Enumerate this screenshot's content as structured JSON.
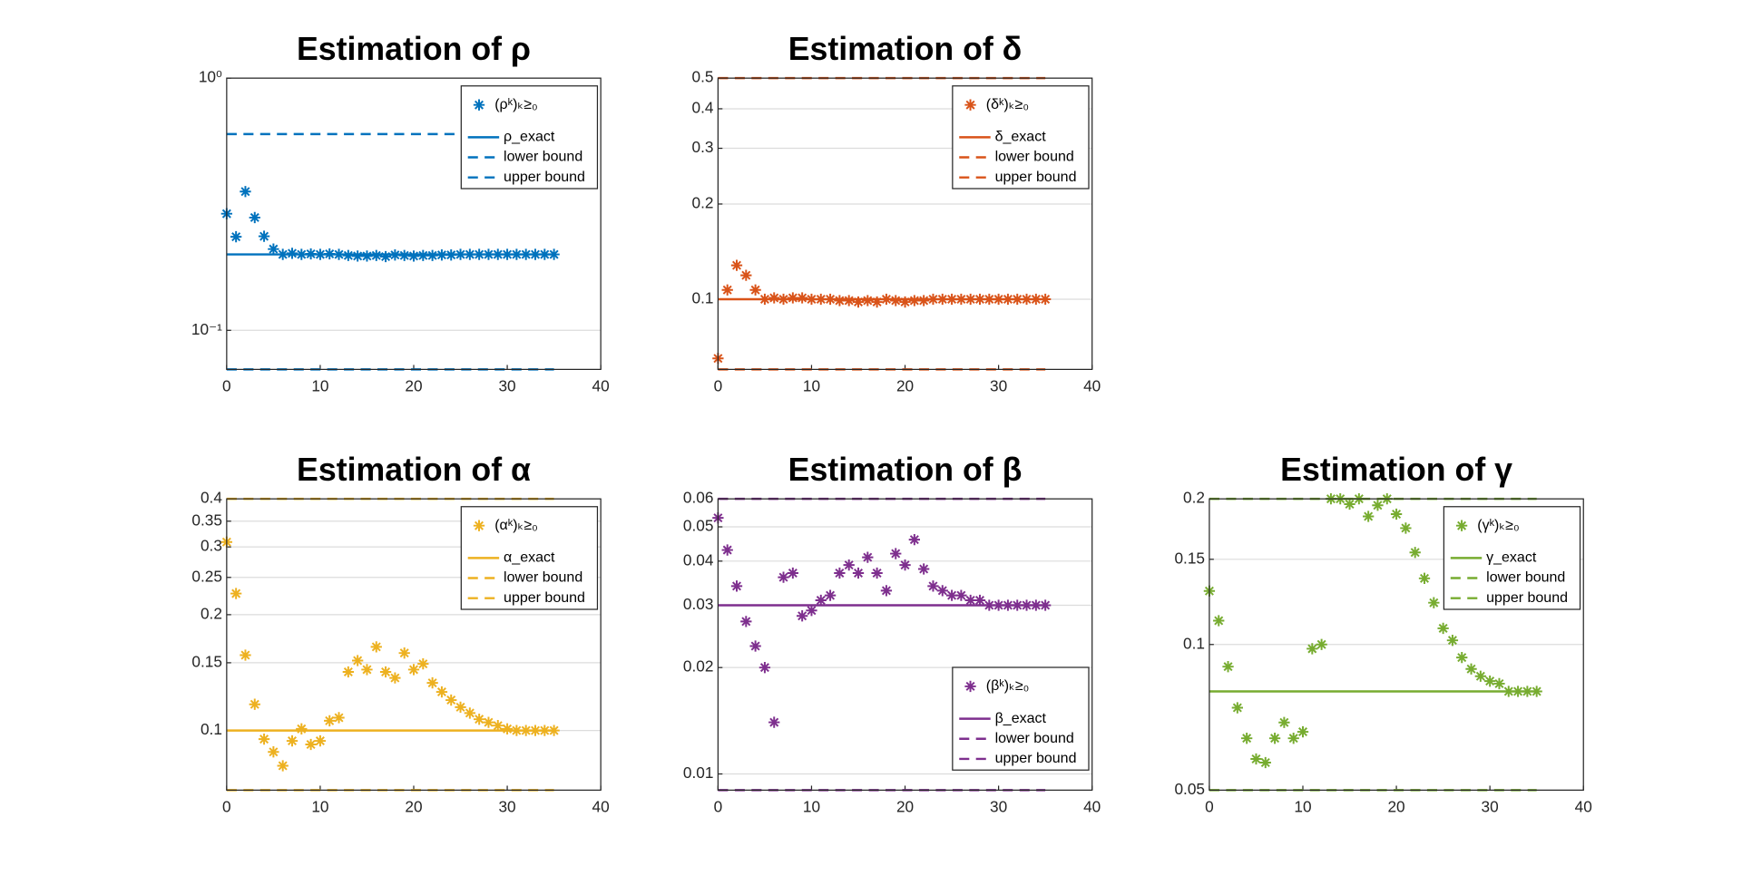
{
  "chart_data": [
    {
      "type": "scatter",
      "title": "Estimation of ρ",
      "log_y": true,
      "grid": true,
      "legend": "upper right",
      "xlim": [
        0,
        40
      ],
      "xticks": [
        0,
        10,
        20,
        30,
        40
      ],
      "ylim": [
        0.07,
        1
      ],
      "yticks": [
        {
          "value": 0.1,
          "label": "10⁻¹"
        },
        {
          "value": 1,
          "label": "10⁰"
        }
      ],
      "x": [
        0,
        1,
        2,
        3,
        4,
        5,
        6,
        7,
        8,
        9,
        10,
        11,
        12,
        13,
        14,
        15,
        16,
        17,
        18,
        19,
        20,
        21,
        22,
        23,
        24,
        25,
        26,
        27,
        28,
        29,
        30,
        31,
        32,
        33,
        34,
        35
      ],
      "series": [
        {
          "name": "(ρᵏ)ₖ≥₀",
          "color": "#0072bd",
          "values": [
            0.29,
            0.235,
            0.355,
            0.28,
            0.236,
            0.21,
            0.2,
            0.202,
            0.2,
            0.201,
            0.2,
            0.201,
            0.2,
            0.198,
            0.197,
            0.197,
            0.198,
            0.196,
            0.199,
            0.198,
            0.197,
            0.198,
            0.198,
            0.199,
            0.199,
            0.2,
            0.2,
            0.2,
            0.2,
            0.2,
            0.2,
            0.2,
            0.2,
            0.2,
            0.2,
            0.2
          ]
        }
      ],
      "reference_lines": [
        {
          "name": "ρ_exact",
          "value": 0.2,
          "dashed": false
        },
        {
          "name": "lower bound",
          "value": 0.07,
          "dashed": true
        },
        {
          "name": "upper bound",
          "value": 0.6,
          "dashed": true
        }
      ]
    },
    {
      "type": "scatter",
      "title": "Estimation of δ",
      "log_y": true,
      "grid": true,
      "legend": "upper right",
      "xlim": [
        0,
        40
      ],
      "xticks": [
        0,
        10,
        20,
        30,
        40
      ],
      "ylim": [
        0.06,
        0.5
      ],
      "yticks": [
        0.1,
        0.2,
        0.3,
        0.4,
        0.5
      ],
      "x": [
        0,
        1,
        2,
        3,
        4,
        5,
        6,
        7,
        8,
        9,
        10,
        11,
        12,
        13,
        14,
        15,
        16,
        17,
        18,
        19,
        20,
        21,
        22,
        23,
        24,
        25,
        26,
        27,
        28,
        29,
        30,
        31,
        32,
        33,
        34,
        35
      ],
      "series": [
        {
          "name": "(δᵏ)ₖ≥₀",
          "color": "#d95319",
          "values": [
            0.065,
            0.107,
            0.128,
            0.119,
            0.107,
            0.1,
            0.101,
            0.1,
            0.101,
            0.101,
            0.1,
            0.1,
            0.1,
            0.099,
            0.099,
            0.098,
            0.099,
            0.098,
            0.1,
            0.099,
            0.098,
            0.099,
            0.099,
            0.1,
            0.1,
            0.1,
            0.1,
            0.1,
            0.1,
            0.1,
            0.1,
            0.1,
            0.1,
            0.1,
            0.1,
            0.1
          ]
        }
      ],
      "reference_lines": [
        {
          "name": "δ_exact",
          "value": 0.1,
          "dashed": false
        },
        {
          "name": "lower bound",
          "value": 0.06,
          "dashed": true
        },
        {
          "name": "upper bound",
          "value": 0.5,
          "dashed": true
        }
      ]
    },
    {
      "type": "scatter",
      "title": "Estimation of α",
      "log_y": true,
      "grid": true,
      "legend": "upper right",
      "xlim": [
        0,
        40
      ],
      "xticks": [
        0,
        10,
        20,
        30,
        40
      ],
      "ylim": [
        0.07,
        0.4
      ],
      "yticks": [
        0.1,
        0.15,
        0.2,
        0.25,
        0.3,
        0.35,
        0.4
      ],
      "x": [
        0,
        1,
        2,
        3,
        4,
        5,
        6,
        7,
        8,
        9,
        10,
        11,
        12,
        13,
        14,
        15,
        16,
        17,
        18,
        19,
        20,
        21,
        22,
        23,
        24,
        25,
        26,
        27,
        28,
        29,
        30,
        31,
        32,
        33,
        34,
        35
      ],
      "series": [
        {
          "name": "(αᵏ)ₖ≥₀",
          "color": "#edb120",
          "values": [
            0.309,
            0.227,
            0.157,
            0.117,
            0.095,
            0.088,
            0.081,
            0.094,
            0.101,
            0.092,
            0.094,
            0.106,
            0.108,
            0.142,
            0.152,
            0.144,
            0.165,
            0.142,
            0.137,
            0.159,
            0.144,
            0.149,
            0.133,
            0.126,
            0.12,
            0.115,
            0.111,
            0.107,
            0.105,
            0.103,
            0.101,
            0.1,
            0.1,
            0.1,
            0.1,
            0.1
          ]
        }
      ],
      "reference_lines": [
        {
          "name": "α_exact",
          "value": 0.1,
          "dashed": false
        },
        {
          "name": "lower bound",
          "value": 0.07,
          "dashed": true
        },
        {
          "name": "upper bound",
          "value": 0.4,
          "dashed": true
        }
      ]
    },
    {
      "type": "scatter",
      "title": "Estimation of β",
      "log_y": true,
      "grid": true,
      "legend": "lower right",
      "xlim": [
        0,
        40
      ],
      "xticks": [
        0,
        10,
        20,
        30,
        40
      ],
      "ylim": [
        0.009,
        0.06
      ],
      "yticks": [
        0.01,
        0.02,
        0.03,
        0.04,
        0.05,
        0.06
      ],
      "x": [
        0,
        1,
        2,
        3,
        4,
        5,
        6,
        7,
        8,
        9,
        10,
        11,
        12,
        13,
        14,
        15,
        16,
        17,
        18,
        19,
        20,
        21,
        22,
        23,
        24,
        25,
        26,
        27,
        28,
        29,
        30,
        31,
        32,
        33,
        34,
        35
      ],
      "series": [
        {
          "name": "(βᵏ)ₖ≥₀",
          "color": "#7e2f8e",
          "values": [
            0.053,
            0.043,
            0.034,
            0.027,
            0.023,
            0.02,
            0.014,
            0.036,
            0.037,
            0.028,
            0.029,
            0.031,
            0.032,
            0.037,
            0.039,
            0.037,
            0.041,
            0.037,
            0.033,
            0.042,
            0.039,
            0.046,
            0.038,
            0.034,
            0.033,
            0.032,
            0.032,
            0.031,
            0.031,
            0.03,
            0.03,
            0.03,
            0.03,
            0.03,
            0.03,
            0.03
          ]
        }
      ],
      "reference_lines": [
        {
          "name": "β_exact",
          "value": 0.03,
          "dashed": false
        },
        {
          "name": "lower bound",
          "value": 0.009,
          "dashed": true
        },
        {
          "name": "upper bound",
          "value": 0.06,
          "dashed": true
        }
      ]
    },
    {
      "type": "scatter",
      "title": "Estimation of γ",
      "log_y": true,
      "grid": true,
      "legend": "upper right",
      "xlim": [
        0,
        40
      ],
      "xticks": [
        0,
        10,
        20,
        30,
        40
      ],
      "ylim": [
        0.05,
        0.2
      ],
      "yticks": [
        0.05,
        0.1,
        0.15,
        0.2
      ],
      "x": [
        0,
        1,
        2,
        3,
        4,
        5,
        6,
        7,
        8,
        9,
        10,
        11,
        12,
        13,
        14,
        15,
        16,
        17,
        18,
        19,
        20,
        21,
        22,
        23,
        24,
        25,
        26,
        27,
        28,
        29,
        30,
        31,
        32,
        33,
        34,
        35
      ],
      "series": [
        {
          "name": "(γᵏ)ₖ≥₀",
          "color": "#77ac30",
          "values": [
            0.129,
            0.112,
            0.09,
            0.074,
            0.064,
            0.058,
            0.057,
            0.064,
            0.069,
            0.064,
            0.066,
            0.098,
            0.1,
            0.2,
            0.2,
            0.195,
            0.2,
            0.184,
            0.194,
            0.2,
            0.186,
            0.174,
            0.155,
            0.137,
            0.122,
            0.108,
            0.102,
            0.094,
            0.089,
            0.086,
            0.084,
            0.083,
            0.08,
            0.08,
            0.08,
            0.08
          ]
        }
      ],
      "reference_lines": [
        {
          "name": "γ_exact",
          "value": 0.08,
          "dashed": false
        },
        {
          "name": "lower bound",
          "value": 0.05,
          "dashed": true
        },
        {
          "name": "upper bound",
          "value": 0.2,
          "dashed": true
        }
      ]
    }
  ]
}
